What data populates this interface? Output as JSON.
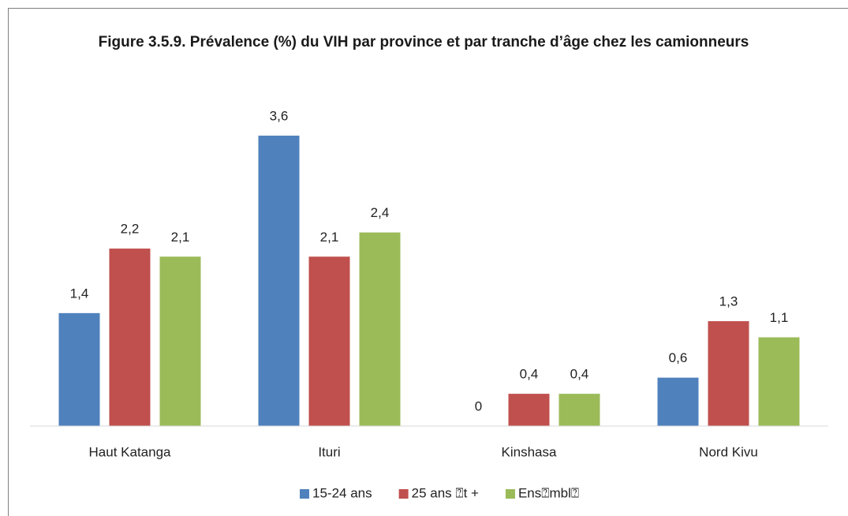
{
  "chart_data": {
    "type": "bar",
    "title": "Figure 3.5.9. Prévalence (%) du VIH par province et par tranche d’âge chez les camionneurs",
    "categories": [
      "Haut Katanga",
      "Ituri",
      "Kinshasa",
      "Nord Kivu"
    ],
    "series": [
      {
        "name": "15-24 ans",
        "color": "#4f81bd",
        "values": [
          1.4,
          3.6,
          0,
          0.6
        ],
        "value_labels": [
          "1,4",
          "3,6",
          "0",
          "0,6"
        ]
      },
      {
        "name": "25 ans ⍰t +",
        "color": "#c0504d",
        "values": [
          2.2,
          2.1,
          0.4,
          1.3
        ],
        "value_labels": [
          "2,2",
          "2,1",
          "0,4",
          "1,3"
        ]
      },
      {
        "name": "Ens⍰mbl⍰",
        "color": "#9bbb59",
        "values": [
          2.1,
          2.4,
          0.4,
          1.1
        ],
        "value_labels": [
          "2,1",
          "2,4",
          "0,4",
          "1,1"
        ]
      }
    ],
    "ylim": [
      0,
      4
    ],
    "legend": "bottom"
  }
}
